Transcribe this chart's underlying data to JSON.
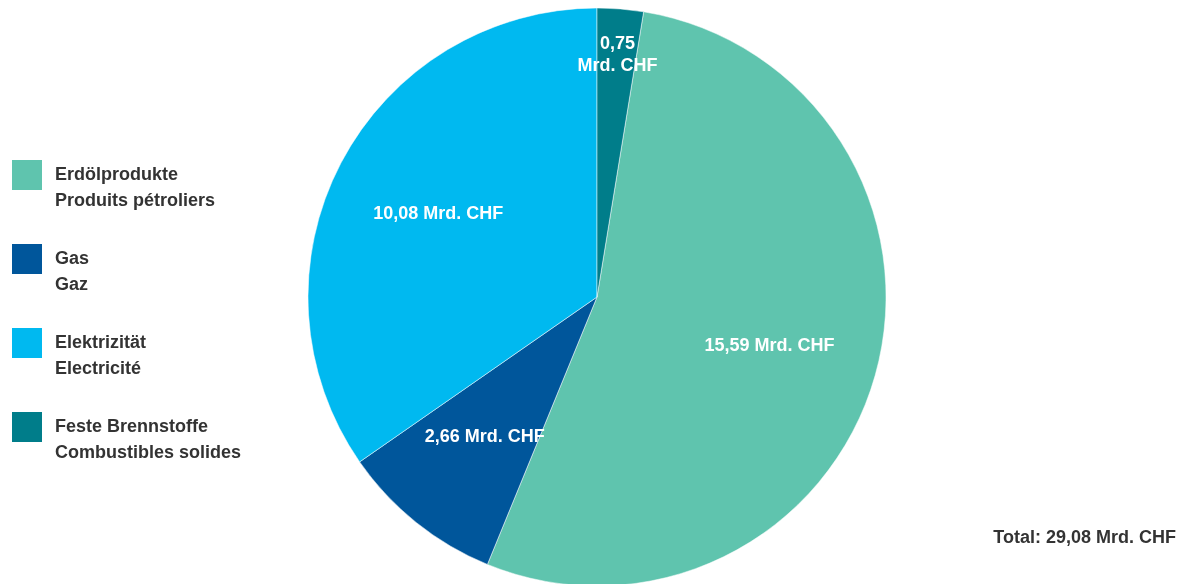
{
  "chart_data": {
    "type": "pie",
    "categories": [
      "Erdölprodukte\nProduits pétroliers",
      "Gas\nGaz",
      "Elektrizität\nElectricité",
      "Feste Brennstoffe\nCombustibles solides"
    ],
    "values": [
      15.59,
      2.66,
      10.08,
      0.75
    ],
    "colors": [
      "#5fc4ae",
      "#00569b",
      "#00b9f0",
      "#007d8a"
    ],
    "value_labels": [
      "15,59 Mrd. CHF",
      "2,66 Mrd. CHF",
      "10,08 Mrd. CHF",
      "0,75 Mrd. CHF"
    ],
    "legend": "left",
    "annotations": [
      "Total: 29,08 Mrd. CHF"
    ]
  }
}
